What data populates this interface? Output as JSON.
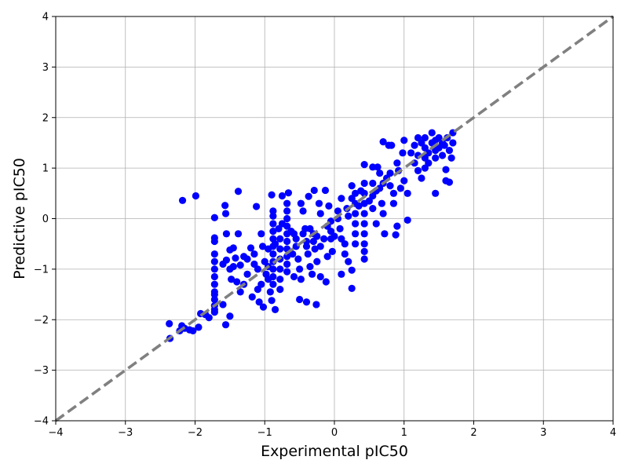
{
  "chart_data": {
    "type": "scatter",
    "title": "",
    "xlabel": "Experimental pIC50",
    "ylabel": "Predictive pIC50",
    "xlim": [
      -4,
      4
    ],
    "ylim": [
      -4,
      4
    ],
    "xticks": [
      -4,
      -3,
      -2,
      -1,
      0,
      1,
      2,
      3,
      4
    ],
    "yticks": [
      -4,
      -3,
      -2,
      -1,
      0,
      1,
      2,
      3,
      4
    ],
    "xtick_labels": [
      "−4",
      "−3",
      "−2",
      "−1",
      "0",
      "1",
      "2",
      "3",
      "4"
    ],
    "ytick_labels": [
      "−4",
      "−3",
      "−2",
      "−1",
      "0",
      "1",
      "2",
      "3",
      "4"
    ],
    "grid": true,
    "point_color": "#0000ff",
    "reference_line": {
      "x": [
        -4,
        4
      ],
      "y": [
        -4,
        4
      ],
      "color": "#808080",
      "style": "dashed"
    },
    "series": [
      {
        "points": [
          [
            -2.37,
            -2.08
          ],
          [
            -2.36,
            -2.37
          ],
          [
            -2.22,
            -2.22
          ],
          [
            -2.19,
            -2.12
          ],
          [
            -2.15,
            -2.17
          ],
          [
            -2.08,
            -2.2
          ],
          [
            -2.03,
            -2.22
          ],
          [
            -1.95,
            -2.15
          ],
          [
            -1.92,
            -1.88
          ],
          [
            -1.85,
            -1.9
          ],
          [
            -1.8,
            -1.96
          ],
          [
            -1.72,
            -1.8
          ],
          [
            -1.72,
            -1.5
          ],
          [
            -1.6,
            -1.7
          ],
          [
            -1.56,
            -2.1
          ],
          [
            -1.5,
            -1.93
          ],
          [
            -2.18,
            0.36
          ],
          [
            -1.99,
            0.45
          ],
          [
            -1.72,
            0.02
          ],
          [
            -1.57,
            0.26
          ],
          [
            -1.56,
            0.1
          ],
          [
            -1.38,
            0.54
          ],
          [
            -1.12,
            0.24
          ],
          [
            -0.9,
            0.47
          ],
          [
            -0.75,
            0.45
          ],
          [
            -0.66,
            0.51
          ],
          [
            -0.37,
            0.44
          ],
          [
            -0.29,
            0.56
          ],
          [
            -0.13,
            0.56
          ],
          [
            -1.72,
            -0.38
          ],
          [
            -1.72,
            -0.45
          ],
          [
            -1.72,
            -0.7
          ],
          [
            -1.72,
            -0.85
          ],
          [
            -1.72,
            -1.0
          ],
          [
            -1.72,
            -1.15
          ],
          [
            -1.72,
            -1.3
          ],
          [
            -1.72,
            -1.45
          ],
          [
            -1.72,
            -1.6
          ],
          [
            -1.72,
            -1.72
          ],
          [
            -1.72,
            -1.85
          ],
          [
            -1.55,
            -0.3
          ],
          [
            -1.5,
            -0.62
          ],
          [
            -1.45,
            -0.58
          ],
          [
            -1.38,
            -0.3
          ],
          [
            -1.55,
            -0.82
          ],
          [
            -1.5,
            -1.0
          ],
          [
            -1.42,
            -0.78
          ],
          [
            -1.35,
            -0.92
          ],
          [
            -1.48,
            -1.2
          ],
          [
            -1.4,
            -1.25
          ],
          [
            -1.35,
            -1.45
          ],
          [
            -1.3,
            -1.3
          ],
          [
            -1.25,
            -1.1
          ],
          [
            -1.18,
            -1.55
          ],
          [
            -1.2,
            -0.58
          ],
          [
            -1.15,
            -0.7
          ],
          [
            -1.1,
            -1.4
          ],
          [
            -1.08,
            -1.65
          ],
          [
            -1.02,
            -1.75
          ],
          [
            -1.05,
            -0.3
          ],
          [
            -1.03,
            -0.55
          ],
          [
            -1.0,
            -0.85
          ],
          [
            -0.98,
            -1.1
          ],
          [
            -0.95,
            -1.2
          ],
          [
            -0.92,
            -1.45
          ],
          [
            -0.9,
            -1.62
          ],
          [
            -0.85,
            -1.8
          ],
          [
            -0.88,
            0.15
          ],
          [
            -0.88,
            0.05
          ],
          [
            -0.88,
            -0.1
          ],
          [
            -0.88,
            -0.25
          ],
          [
            -0.88,
            -0.4
          ],
          [
            -0.88,
            -0.55
          ],
          [
            -0.88,
            -0.7
          ],
          [
            -0.88,
            -0.85
          ],
          [
            -0.88,
            -1.0
          ],
          [
            -0.88,
            -1.15
          ],
          [
            -0.88,
            -1.3
          ],
          [
            -0.78,
            -0.4
          ],
          [
            -0.78,
            -0.6
          ],
          [
            -0.78,
            -0.8
          ],
          [
            -0.78,
            -1.0
          ],
          [
            -0.78,
            -1.2
          ],
          [
            -0.78,
            -1.4
          ],
          [
            -0.68,
            0.3
          ],
          [
            -0.68,
            0.15
          ],
          [
            -0.68,
            0.0
          ],
          [
            -0.68,
            -0.15
          ],
          [
            -0.68,
            -0.3
          ],
          [
            -0.68,
            -0.45
          ],
          [
            -0.68,
            -0.6
          ],
          [
            -0.68,
            -0.75
          ],
          [
            -0.68,
            -0.9
          ],
          [
            -0.68,
            -1.05
          ],
          [
            -0.58,
            -0.3
          ],
          [
            -0.55,
            -0.55
          ],
          [
            -0.52,
            -0.8
          ],
          [
            -0.5,
            -1.0
          ],
          [
            -0.48,
            -1.2
          ],
          [
            -0.5,
            -1.6
          ],
          [
            -0.48,
            0.3
          ],
          [
            -0.45,
            0.15
          ],
          [
            -0.42,
            -0.2
          ],
          [
            -0.4,
            -0.45
          ],
          [
            -0.38,
            -0.7
          ],
          [
            -0.4,
            -1.65
          ],
          [
            -0.35,
            -0.95
          ],
          [
            -0.32,
            -1.1
          ],
          [
            -0.3,
            -0.3
          ],
          [
            -0.28,
            -0.6
          ],
          [
            -0.25,
            -0.85
          ],
          [
            -0.26,
            -1.7
          ],
          [
            -0.22,
            0.3
          ],
          [
            -0.2,
            0.1
          ],
          [
            -0.2,
            -1.15
          ],
          [
            -0.15,
            -0.4
          ],
          [
            -0.12,
            -1.25
          ],
          [
            -0.1,
            -0.75
          ],
          [
            -0.08,
            0.25
          ],
          [
            -0.05,
            -0.05
          ],
          [
            -0.05,
            -0.25
          ],
          [
            -0.05,
            -0.4
          ],
          [
            -0.03,
            -0.65
          ],
          [
            0.0,
            -0.35
          ],
          [
            0.05,
            0.0
          ],
          [
            0.08,
            -0.2
          ],
          [
            0.1,
            -1.1
          ],
          [
            0.1,
            0.4
          ],
          [
            0.15,
            -0.5
          ],
          [
            0.15,
            -0.7
          ],
          [
            0.18,
            0.2
          ],
          [
            0.2,
            -0.85
          ],
          [
            0.25,
            -1.02
          ],
          [
            0.25,
            -1.38
          ],
          [
            0.25,
            0.65
          ],
          [
            0.3,
            0.5
          ],
          [
            0.3,
            0.3
          ],
          [
            0.3,
            0.1
          ],
          [
            0.3,
            -0.1
          ],
          [
            0.3,
            -0.3
          ],
          [
            0.3,
            -0.5
          ],
          [
            0.43,
            1.07
          ],
          [
            0.43,
            0.7
          ],
          [
            0.43,
            0.5
          ],
          [
            0.43,
            0.3
          ],
          [
            0.43,
            0.1
          ],
          [
            0.43,
            -0.1
          ],
          [
            0.43,
            -0.3
          ],
          [
            0.43,
            -0.5
          ],
          [
            0.43,
            -0.65
          ],
          [
            0.43,
            -0.8
          ],
          [
            0.55,
            1.02
          ],
          [
            0.55,
            0.7
          ],
          [
            0.55,
            0.45
          ],
          [
            0.55,
            0.2
          ],
          [
            0.6,
            -0.1
          ],
          [
            0.62,
            1.02
          ],
          [
            0.65,
            0.6
          ],
          [
            0.68,
            0.3
          ],
          [
            0.7,
            0.1
          ],
          [
            0.72,
            -0.3
          ],
          [
            0.75,
            0.8
          ],
          [
            0.78,
            1.45
          ],
          [
            0.7,
            1.52
          ],
          [
            0.82,
            1.45
          ],
          [
            0.8,
            0.9
          ],
          [
            0.85,
            0.5
          ],
          [
            0.85,
            0.3
          ],
          [
            0.88,
            -0.32
          ],
          [
            0.9,
            -0.15
          ],
          [
            0.92,
            0.95
          ],
          [
            0.95,
            0.6
          ],
          [
            0.98,
            1.3
          ],
          [
            1.0,
            0.75
          ],
          [
            1.0,
            1.55
          ],
          [
            1.05,
            -0.03
          ],
          [
            1.05,
            0.5
          ],
          [
            1.1,
            1.3
          ],
          [
            1.15,
            1.1
          ],
          [
            1.2,
            0.95
          ],
          [
            1.25,
            0.8
          ],
          [
            1.3,
            1.0
          ],
          [
            1.3,
            1.2
          ],
          [
            1.3,
            1.4
          ],
          [
            1.3,
            1.6
          ],
          [
            1.35,
            1.1
          ],
          [
            1.35,
            1.3
          ],
          [
            1.4,
            1.5
          ],
          [
            1.4,
            1.7
          ],
          [
            1.45,
            1.2
          ],
          [
            1.45,
            0.5
          ],
          [
            1.5,
            1.4
          ],
          [
            1.5,
            1.6
          ],
          [
            1.55,
            1.25
          ],
          [
            1.58,
            1.45
          ],
          [
            1.6,
            0.75
          ],
          [
            1.6,
            0.97
          ],
          [
            1.62,
            1.6
          ],
          [
            1.65,
            0.72
          ],
          [
            1.65,
            1.35
          ],
          [
            1.68,
            1.2
          ],
          [
            1.7,
            1.5
          ],
          [
            1.7,
            1.7
          ],
          [
            1.15,
            1.45
          ],
          [
            1.2,
            1.6
          ],
          [
            1.25,
            1.5
          ],
          [
            1.45,
            1.55
          ],
          [
            1.55,
            1.5
          ],
          [
            1.2,
            1.25
          ],
          [
            1.45,
            1.35
          ],
          [
            -1.25,
            -0.8
          ],
          [
            -1.1,
            -1.0
          ],
          [
            -1.05,
            -1.3
          ],
          [
            -0.95,
            -0.6
          ],
          [
            -0.8,
            -0.2
          ],
          [
            -0.62,
            -0.25
          ],
          [
            -0.6,
            -0.7
          ],
          [
            -0.58,
            -1.15
          ],
          [
            -0.45,
            -0.3
          ],
          [
            -0.35,
            -0.2
          ],
          [
            -0.3,
            -0.45
          ],
          [
            -0.2,
            -0.55
          ],
          [
            -0.1,
            -0.15
          ],
          [
            0.05,
            0.15
          ],
          [
            0.2,
            0.05
          ],
          [
            0.35,
            0.25
          ],
          [
            0.5,
            0.35
          ],
          [
            0.6,
            0.55
          ],
          [
            0.7,
            0.7
          ],
          [
            0.8,
            0.65
          ],
          [
            -1.6,
            -0.9
          ],
          [
            -1.45,
            -0.95
          ],
          [
            -1.3,
            -0.75
          ],
          [
            -1.15,
            -0.9
          ],
          [
            -0.95,
            -0.95
          ],
          [
            -0.85,
            -0.5
          ],
          [
            -0.75,
            -0.1
          ],
          [
            -0.55,
            -0.4
          ],
          [
            -0.4,
            -0.55
          ],
          [
            -0.25,
            -0.35
          ],
          [
            0.1,
            -0.4
          ],
          [
            0.25,
            0.4
          ],
          [
            0.38,
            0.55
          ],
          [
            0.65,
            0.9
          ],
          [
            0.9,
            1.1
          ]
        ]
      }
    ]
  }
}
